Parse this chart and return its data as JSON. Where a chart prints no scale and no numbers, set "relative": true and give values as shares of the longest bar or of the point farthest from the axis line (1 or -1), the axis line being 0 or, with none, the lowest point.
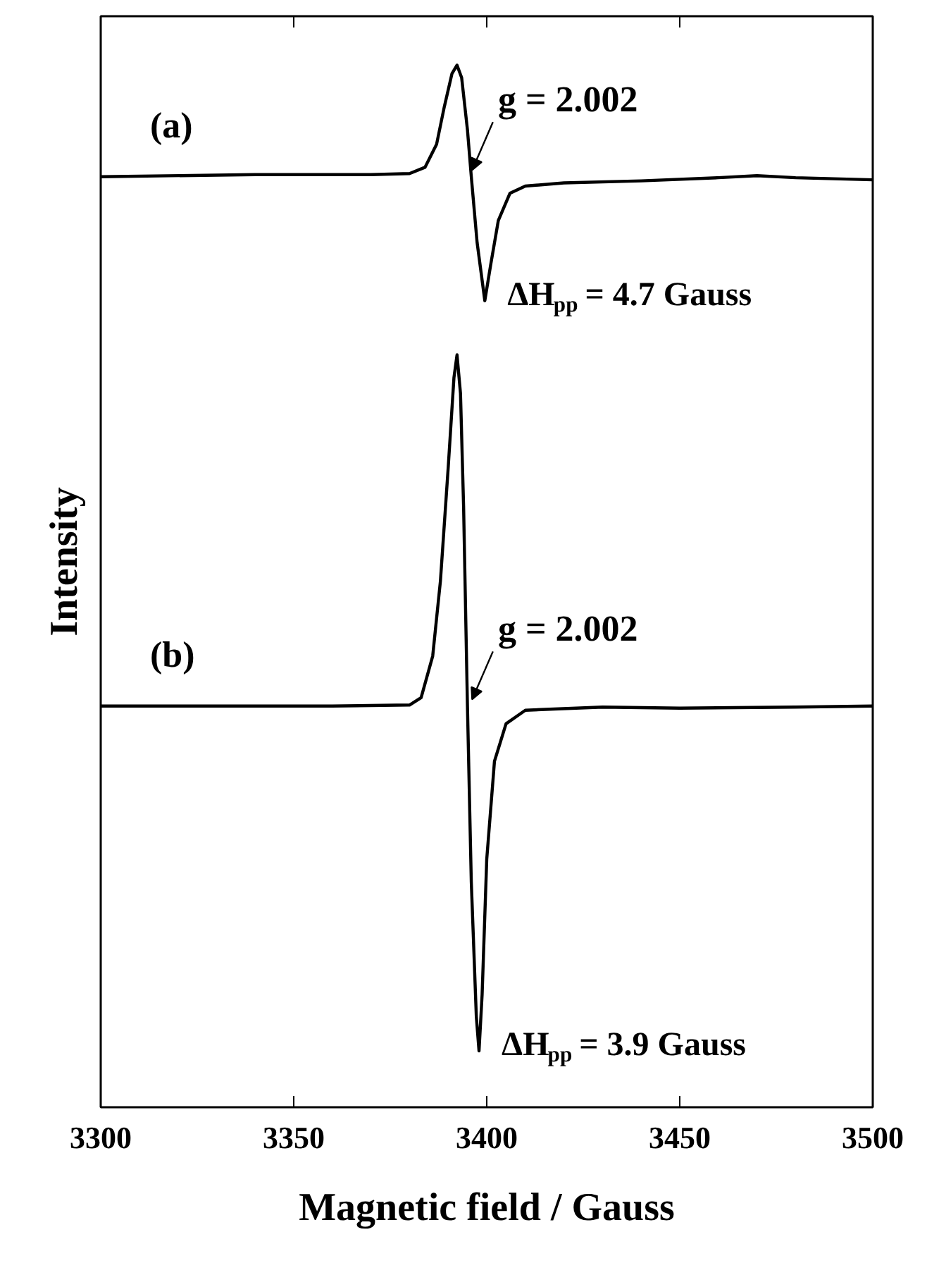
{
  "chart_data": {
    "type": "line",
    "relative": true,
    "xlabel": "Magnetic field / Gauss",
    "ylabel": "Intensity",
    "xlim": [
      3300,
      3500
    ],
    "xticks": [
      3300,
      3350,
      3400,
      3450,
      3500
    ],
    "grid": false,
    "marker": "none",
    "line_style": "solid",
    "series": [
      {
        "name": "(a)",
        "color": "#000000",
        "x": [
          3300,
          3340,
          3370,
          3380,
          3384,
          3387,
          3389,
          3391,
          3392.3,
          3393.5,
          3395,
          3396,
          3397.5,
          3399.5,
          3401,
          3403,
          3406,
          3410,
          3420,
          3440,
          3460,
          3470,
          3480,
          3500
        ],
        "values": [
          0.893,
          0.895,
          0.895,
          0.896,
          0.902,
          0.924,
          0.96,
          0.992,
          1.0,
          0.988,
          0.938,
          0.893,
          0.83,
          0.774,
          0.808,
          0.851,
          0.877,
          0.884,
          0.887,
          0.889,
          0.892,
          0.894,
          0.892,
          0.89
        ]
      },
      {
        "name": "(b)",
        "color": "#000000",
        "x": [
          3300,
          3360,
          3380,
          3383,
          3386,
          3388,
          3390,
          3391.5,
          3392.3,
          3393.2,
          3394,
          3395,
          3396,
          3397.3,
          3398,
          3398.8,
          3400,
          3402,
          3405,
          3410,
          3430,
          3450,
          3480,
          3500
        ],
        "values": [
          0.385,
          0.385,
          0.386,
          0.393,
          0.433,
          0.505,
          0.613,
          0.7,
          0.722,
          0.685,
          0.577,
          0.385,
          0.216,
          0.087,
          0.054,
          0.108,
          0.238,
          0.332,
          0.368,
          0.381,
          0.384,
          0.383,
          0.384,
          0.385
        ]
      }
    ],
    "annotations": [
      {
        "text": "g = 2.002",
        "x": 3395.6,
        "y": 0.893
      },
      {
        "text": "ΔH$_{pp}$ = 4.7 Gauss",
        "x": 3399.5,
        "y": 0.774
      },
      {
        "text": "g = 2.002",
        "x": 3395.6,
        "y": 0.385
      },
      {
        "text": "ΔH$_{pp}$ = 3.9 Gauss",
        "x": 3398,
        "y": 0.054
      }
    ]
  }
}
